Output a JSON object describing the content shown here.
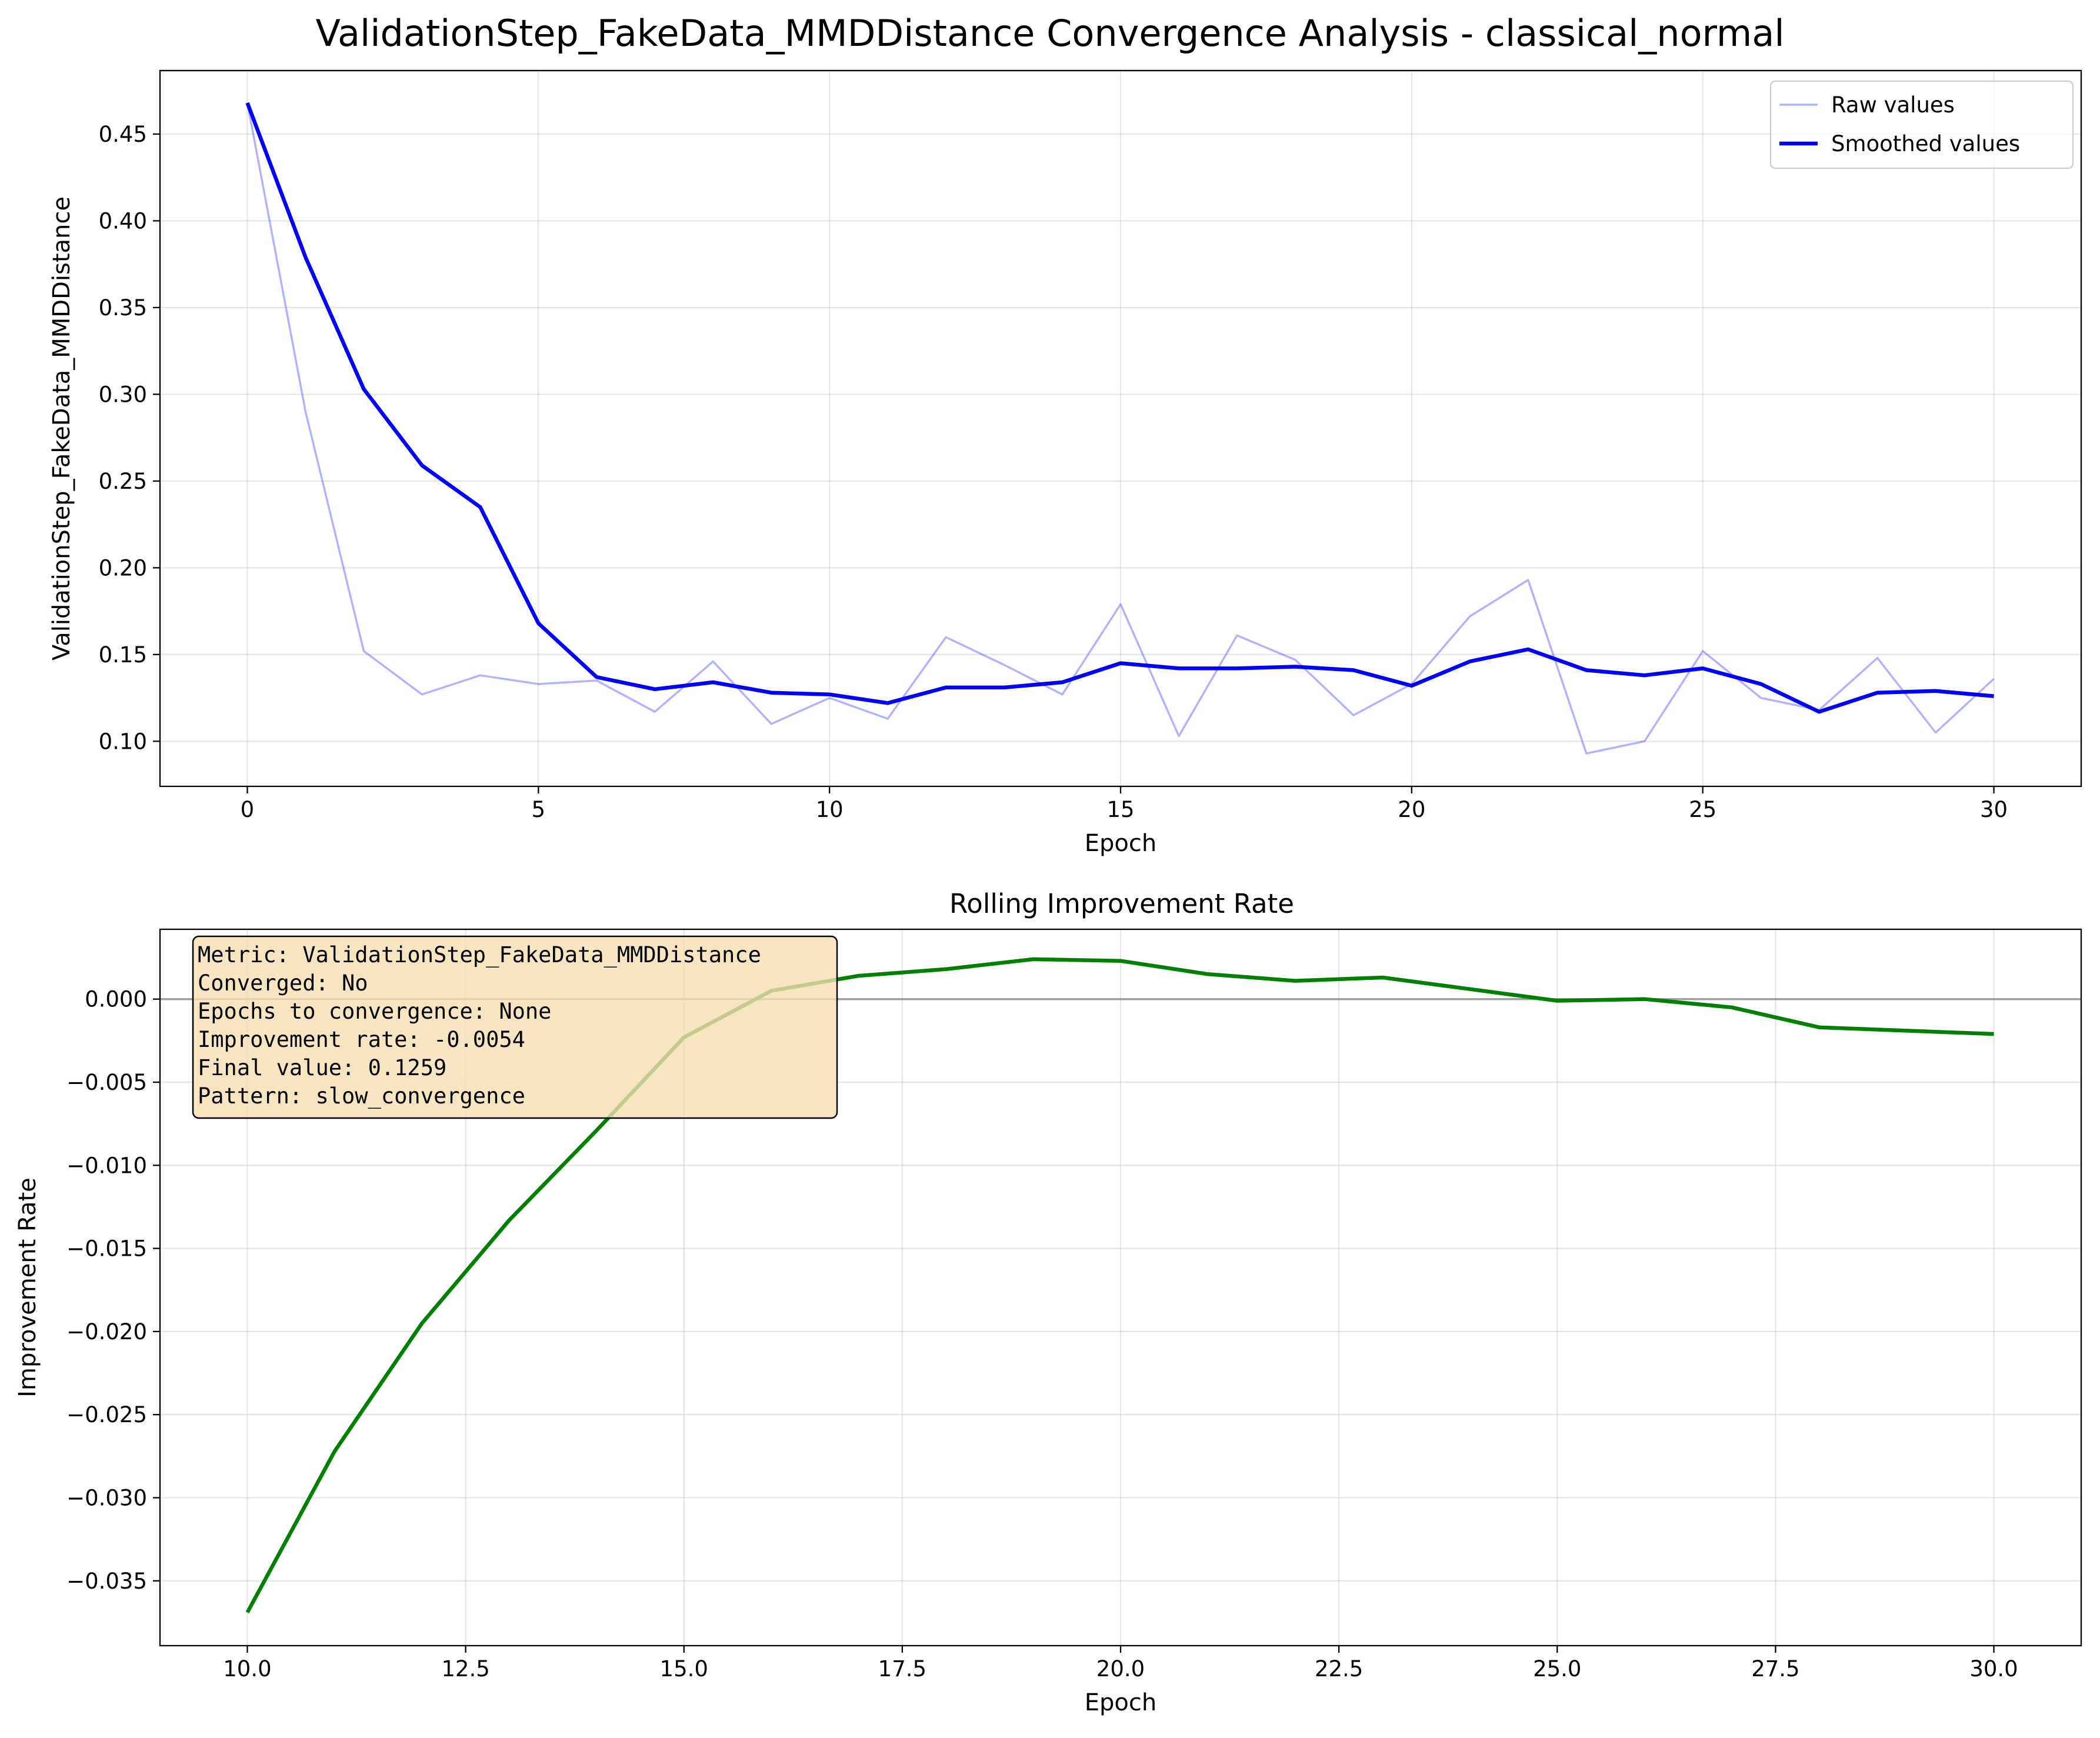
{
  "figure_title": "ValidationStep_FakeData_MMDDistance Convergence Analysis - classical_normal",
  "colors": {
    "raw": "#0000ff",
    "smoothed": "#0000ff",
    "improvement": "#008000",
    "zero_line": "#808080",
    "annotation_bg": "#f5deb3"
  },
  "chart_data": [
    {
      "type": "line",
      "title": "",
      "xlabel": "Epoch",
      "ylabel": "ValidationStep_FakeData_MMDDistance",
      "xlim": [
        -1.5,
        31.5
      ],
      "ylim": [
        0.074,
        0.4866
      ],
      "xticks": [
        0,
        5,
        10,
        15,
        20,
        25,
        30
      ],
      "xtick_labels": [
        "0",
        "5",
        "10",
        "15",
        "20",
        "25",
        "30"
      ],
      "yticks": [
        0.1,
        0.15,
        0.2,
        0.25,
        0.3,
        0.35,
        0.4,
        0.45
      ],
      "ytick_labels": [
        "0.10",
        "0.15",
        "0.20",
        "0.25",
        "0.30",
        "0.35",
        "0.40",
        "0.45"
      ],
      "grid": true,
      "legend": "top-right",
      "x": [
        0,
        1,
        2,
        3,
        4,
        5,
        6,
        7,
        8,
        9,
        10,
        11,
        12,
        13,
        14,
        15,
        16,
        17,
        18,
        19,
        20,
        21,
        22,
        23,
        24,
        25,
        26,
        27,
        28,
        29,
        30
      ],
      "series": [
        {
          "name": "Raw values",
          "values": [
            0.468,
            0.29,
            0.152,
            0.127,
            0.138,
            0.133,
            0.135,
            0.117,
            0.146,
            0.11,
            0.125,
            0.113,
            0.16,
            0.144,
            0.127,
            0.179,
            0.103,
            0.161,
            0.147,
            0.115,
            0.133,
            0.172,
            0.193,
            0.093,
            0.1,
            0.152,
            0.125,
            0.118,
            0.148,
            0.105,
            0.136
          ]
        },
        {
          "name": "Smoothed values",
          "values": [
            0.468,
            0.379,
            0.303,
            0.259,
            0.235,
            0.168,
            0.137,
            0.13,
            0.134,
            0.128,
            0.127,
            0.122,
            0.131,
            0.131,
            0.134,
            0.145,
            0.142,
            0.142,
            0.143,
            0.141,
            0.132,
            0.146,
            0.153,
            0.141,
            0.138,
            0.142,
            0.133,
            0.117,
            0.128,
            0.129,
            0.126
          ]
        }
      ]
    },
    {
      "type": "line",
      "title": "Rolling Improvement Rate",
      "xlabel": "Epoch",
      "ylabel": "Improvement Rate",
      "xlim": [
        9,
        31
      ],
      "ylim": [
        -0.0389,
        0.0042
      ],
      "xticks": [
        10,
        12.5,
        15,
        17.5,
        20,
        22.5,
        25,
        27.5,
        30
      ],
      "xtick_labels": [
        "10.0",
        "12.5",
        "15.0",
        "17.5",
        "20.0",
        "22.5",
        "25.0",
        "27.5",
        "30.0"
      ],
      "yticks": [
        -0.035,
        -0.03,
        -0.025,
        -0.02,
        -0.015,
        -0.01,
        -0.005,
        0.0
      ],
      "ytick_labels": [
        "−0.035",
        "−0.030",
        "−0.025",
        "−0.020",
        "−0.015",
        "−0.010",
        "−0.005",
        "0.000"
      ],
      "grid": true,
      "reference_line_y": 0,
      "x": [
        10,
        11,
        12,
        13,
        14,
        15,
        16,
        17,
        18,
        19,
        20,
        21,
        22,
        23,
        24,
        25,
        26,
        27,
        28,
        29,
        30
      ],
      "series": [
        {
          "values": [
            -0.0369,
            -0.0272,
            -0.0195,
            -0.0133,
            -0.0079,
            -0.0023,
            0.0005,
            0.0014,
            0.0018,
            0.0024,
            0.0023,
            0.0015,
            0.0011,
            0.0013,
            0.0006,
            -0.0001,
            0.0,
            -0.0005,
            -0.0017,
            -0.0019,
            -0.0021
          ]
        }
      ],
      "annotation": {
        "lines": [
          "Metric: ValidationStep_FakeData_MMDDistance",
          "Converged: No",
          "Epochs to convergence: None",
          "Improvement rate: -0.0054",
          "Final value: 0.1259",
          "Pattern: slow_convergence"
        ]
      }
    }
  ]
}
